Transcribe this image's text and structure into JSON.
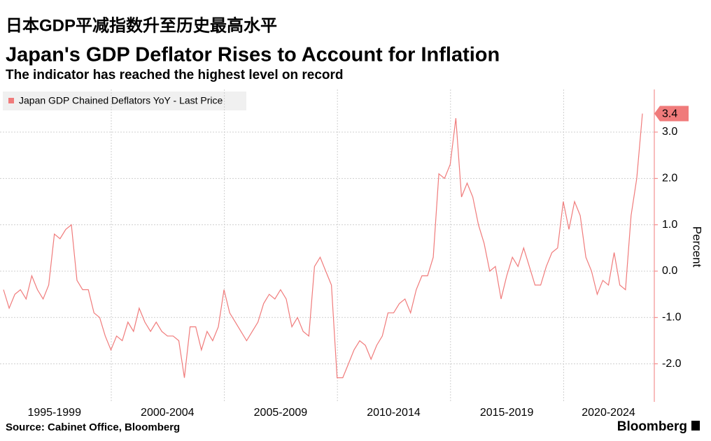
{
  "chart_data": {
    "type": "line",
    "cn_title": "日本GDP平减指数升至历史最高水平",
    "title": "Japan's GDP Deflator Rises to Account for Inflation",
    "subtitle": "The indicator has reached the highest level on record",
    "y_label": "Percent",
    "source": "Source: Cabinet Office, Bloomberg",
    "brand": "Bloomberg",
    "categories": [
      null,
      null,
      null,
      null,
      null,
      null,
      null,
      null,
      null,
      "1995-1999",
      null,
      null,
      null,
      null,
      null,
      null,
      null,
      null,
      null,
      null,
      null,
      null,
      null,
      null,
      null,
      null,
      null,
      null,
      null,
      "2000-2004",
      null,
      null,
      null,
      null,
      null,
      null,
      null,
      null,
      null,
      null,
      null,
      null,
      null,
      null,
      null,
      null,
      null,
      null,
      null,
      "2005-2009",
      null,
      null,
      null,
      null,
      null,
      null,
      null,
      null,
      null,
      null,
      null,
      null,
      null,
      null,
      null,
      null,
      null,
      null,
      null,
      "2010-2014",
      null,
      null,
      null,
      null,
      null,
      null,
      null,
      null,
      null,
      null,
      null,
      null,
      null,
      null,
      null,
      null,
      null,
      null,
      null,
      "2015-2019",
      null,
      null,
      null,
      null,
      null,
      null,
      null,
      null,
      null,
      null,
      null,
      null,
      null,
      null,
      null,
      null,
      null,
      "2020-2024",
      null,
      null,
      null,
      null,
      null,
      null
    ],
    "series": [
      {
        "name": "Japan GDP Chained Deflators YoY - Last Price",
        "color": "#f07b7b",
        "values": [
          -0.4,
          -0.8,
          -0.5,
          -0.4,
          -0.6,
          -0.1,
          -0.4,
          -0.6,
          -0.3,
          0.8,
          0.7,
          0.9,
          1.0,
          -0.2,
          -0.4,
          -0.4,
          -0.9,
          -1.0,
          -1.4,
          -1.7,
          -1.4,
          -1.5,
          -1.1,
          -1.3,
          -0.8,
          -1.1,
          -1.3,
          -1.1,
          -1.3,
          -1.4,
          -1.4,
          -1.5,
          -2.3,
          -1.2,
          -1.2,
          -1.7,
          -1.3,
          -1.5,
          -1.2,
          -0.4,
          -0.9,
          -1.1,
          -1.3,
          -1.5,
          -1.3,
          -1.1,
          -0.7,
          -0.5,
          -0.6,
          -0.4,
          -0.6,
          -1.2,
          -1.0,
          -1.3,
          -1.4,
          0.1,
          0.3,
          0.0,
          -0.3,
          -2.3,
          -2.3,
          -2.0,
          -1.7,
          -1.5,
          -1.6,
          -1.9,
          -1.6,
          -1.4,
          -0.9,
          -0.9,
          -0.7,
          -0.6,
          -0.9,
          -0.4,
          -0.1,
          -0.1,
          0.3,
          2.1,
          2.0,
          2.3,
          3.3,
          1.6,
          1.9,
          1.6,
          1.0,
          0.6,
          0.0,
          0.1,
          -0.6,
          -0.1,
          0.3,
          0.1,
          0.5,
          0.1,
          -0.3,
          -0.3,
          0.1,
          0.4,
          0.5,
          1.5,
          0.9,
          1.5,
          1.2,
          0.3,
          0.0,
          -0.5,
          -0.2,
          -0.3,
          0.4,
          -0.3,
          -0.4,
          1.2,
          2.0,
          3.4
        ]
      }
    ],
    "ylim": [
      -2.82,
      3.92
    ],
    "yticks": [
      {
        "value": -2,
        "label": "-2.0"
      },
      {
        "value": -1,
        "label": "-1.0"
      },
      {
        "value": 0,
        "label": "0.0"
      },
      {
        "value": 1,
        "label": "1.0"
      },
      {
        "value": 2,
        "label": "2.0"
      },
      {
        "value": 3,
        "label": "3.0"
      }
    ],
    "grid": true
  }
}
